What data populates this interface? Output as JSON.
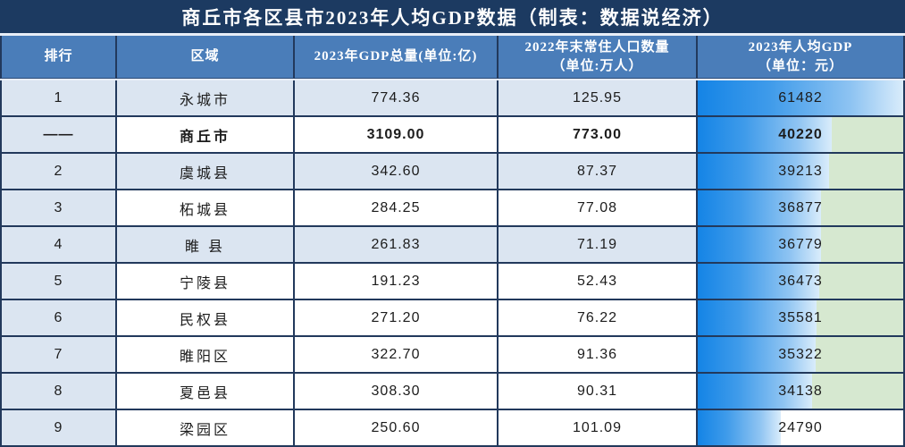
{
  "chart_data": {
    "type": "table",
    "title": "商丘市各区县市2023年人均GDP数据（制表：数据说经济）",
    "columns": [
      {
        "id": "rank",
        "line1": "排行",
        "line2": ""
      },
      {
        "id": "region",
        "line1": "区域",
        "line2": ""
      },
      {
        "id": "gdp",
        "line1": "2023年GDP总量(单位:亿)",
        "line2": ""
      },
      {
        "id": "population",
        "line1": "2022年末常住人口数量",
        "line2": "（单位:万人）"
      },
      {
        "id": "per_capita",
        "line1": "2023年人均GDP",
        "line2": "（单位：元）"
      }
    ],
    "databar_column": "per_capita",
    "databar_max": 61482,
    "rows": [
      {
        "rank": "1",
        "region": "永城市",
        "gdp": "774.36",
        "population": "125.95",
        "per_capita": 61482,
        "row_shaded": true,
        "bold": false,
        "bar_rest": "none"
      },
      {
        "rank": "——",
        "region": "商丘市",
        "gdp": "3109.00",
        "population": "773.00",
        "per_capita": 40220,
        "row_shaded": false,
        "bold": true,
        "bar_rest": "green"
      },
      {
        "rank": "2",
        "region": "虞城县",
        "gdp": "342.60",
        "population": "87.37",
        "per_capita": 39213,
        "row_shaded": true,
        "bold": false,
        "bar_rest": "green"
      },
      {
        "rank": "3",
        "region": "柘城县",
        "gdp": "284.25",
        "population": "77.08",
        "per_capita": 36877,
        "row_shaded": false,
        "bold": false,
        "bar_rest": "green"
      },
      {
        "rank": "4",
        "region": "睢 县",
        "gdp": "261.83",
        "population": "71.19",
        "per_capita": 36779,
        "row_shaded": true,
        "bold": false,
        "bar_rest": "green"
      },
      {
        "rank": "5",
        "region": "宁陵县",
        "gdp": "191.23",
        "population": "52.43",
        "per_capita": 36473,
        "row_shaded": false,
        "bold": false,
        "bar_rest": "green"
      },
      {
        "rank": "6",
        "region": "民权县",
        "gdp": "271.20",
        "population": "76.22",
        "per_capita": 35581,
        "row_shaded": false,
        "bold": false,
        "bar_rest": "green"
      },
      {
        "rank": "7",
        "region": "睢阳区",
        "gdp": "322.70",
        "population": "91.36",
        "per_capita": 35322,
        "row_shaded": false,
        "bold": false,
        "bar_rest": "green"
      },
      {
        "rank": "8",
        "region": "夏邑县",
        "gdp": "308.30",
        "population": "90.31",
        "per_capita": 34138,
        "row_shaded": false,
        "bold": false,
        "bar_rest": "green"
      },
      {
        "rank": "9",
        "region": "梁园区",
        "gdp": "250.60",
        "population": "101.09",
        "per_capita": 24790,
        "row_shaded": false,
        "bold": false,
        "bar_rest": "white"
      }
    ]
  },
  "colors": {
    "title_bg": "#1c3a61",
    "title_text": "#ffffff",
    "header_bg": "#4a7db9",
    "header_text": "#ffffff",
    "border": "#22395c",
    "rank_col_bg": "#dbe5f1",
    "row_shaded_bg": "#dbe5f1",
    "row_white_bg": "#ffffff",
    "bar_gradient_start": "#1484e6",
    "bar_gradient_end": "#d9ecfb",
    "bar_rest_green": "#d6e8d0",
    "bar_rest_white": "#ffffff",
    "cell_text": "#1c1c1c"
  }
}
